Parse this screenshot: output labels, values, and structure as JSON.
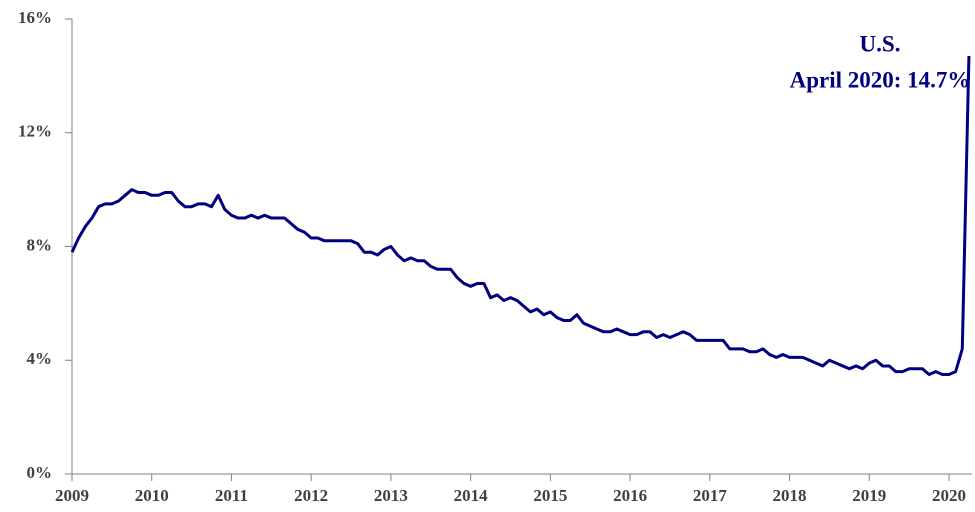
{
  "chart_data": {
    "type": "line",
    "annotation": [
      "U.S.",
      "April 2020: 14.7%"
    ],
    "categories": [
      "2009",
      null,
      null,
      null,
      null,
      null,
      null,
      null,
      null,
      null,
      null,
      null,
      "2010",
      null,
      null,
      null,
      null,
      null,
      null,
      null,
      null,
      null,
      null,
      null,
      "2011",
      null,
      null,
      null,
      null,
      null,
      null,
      null,
      null,
      null,
      null,
      null,
      "2012",
      null,
      null,
      null,
      null,
      null,
      null,
      null,
      null,
      null,
      null,
      null,
      "2013",
      null,
      null,
      null,
      null,
      null,
      null,
      null,
      null,
      null,
      null,
      null,
      "2014",
      null,
      null,
      null,
      null,
      null,
      null,
      null,
      null,
      null,
      null,
      null,
      "2015",
      null,
      null,
      null,
      null,
      null,
      null,
      null,
      null,
      null,
      null,
      null,
      "2016",
      null,
      null,
      null,
      null,
      null,
      null,
      null,
      null,
      null,
      null,
      null,
      "2017",
      null,
      null,
      null,
      null,
      null,
      null,
      null,
      null,
      null,
      null,
      null,
      "2018",
      null,
      null,
      null,
      null,
      null,
      null,
      null,
      null,
      null,
      null,
      null,
      "2019",
      null,
      null,
      null,
      null,
      null,
      null,
      null,
      null,
      null,
      null,
      null,
      "2020",
      null,
      null,
      null
    ],
    "series": [
      {
        "name": "U.S.",
        "color": "#000080",
        "values": [
          7.8,
          8.3,
          8.7,
          9.0,
          9.4,
          9.5,
          9.5,
          9.6,
          9.8,
          10.0,
          9.9,
          9.9,
          9.8,
          9.8,
          9.9,
          9.9,
          9.6,
          9.4,
          9.4,
          9.5,
          9.5,
          9.4,
          9.8,
          9.3,
          9.1,
          9.0,
          9.0,
          9.1,
          9.0,
          9.1,
          9.0,
          9.0,
          9.0,
          8.8,
          8.6,
          8.5,
          8.3,
          8.3,
          8.2,
          8.2,
          8.2,
          8.2,
          8.2,
          8.1,
          7.8,
          7.8,
          7.7,
          7.9,
          8.0,
          7.7,
          7.5,
          7.6,
          7.5,
          7.5,
          7.3,
          7.2,
          7.2,
          7.2,
          6.9,
          6.7,
          6.6,
          6.7,
          6.7,
          6.2,
          6.3,
          6.1,
          6.2,
          6.1,
          5.9,
          5.7,
          5.8,
          5.6,
          5.7,
          5.5,
          5.4,
          5.4,
          5.6,
          5.3,
          5.2,
          5.1,
          5.0,
          5.0,
          5.1,
          5.0,
          4.9,
          4.9,
          5.0,
          5.0,
          4.8,
          4.9,
          4.8,
          4.9,
          5.0,
          4.9,
          4.7,
          4.7,
          4.7,
          4.7,
          4.7,
          4.4,
          4.4,
          4.4,
          4.3,
          4.3,
          4.4,
          4.2,
          4.1,
          4.2,
          4.1,
          4.1,
          4.1,
          4.0,
          3.9,
          3.8,
          4.0,
          3.9,
          3.8,
          3.7,
          3.8,
          3.7,
          3.9,
          4.0,
          3.8,
          3.8,
          3.6,
          3.6,
          3.7,
          3.7,
          3.7,
          3.5,
          3.6,
          3.5,
          3.5,
          3.6,
          4.4,
          14.7
        ]
      }
    ],
    "ylim": [
      0,
      16
    ],
    "yticks": [
      {
        "value": 0,
        "label": "0%"
      },
      {
        "value": 4,
        "label": "4%"
      },
      {
        "value": 8,
        "label": "8%"
      },
      {
        "value": 12,
        "label": "12%"
      },
      {
        "value": 16,
        "label": "16%"
      }
    ],
    "grid": false
  }
}
